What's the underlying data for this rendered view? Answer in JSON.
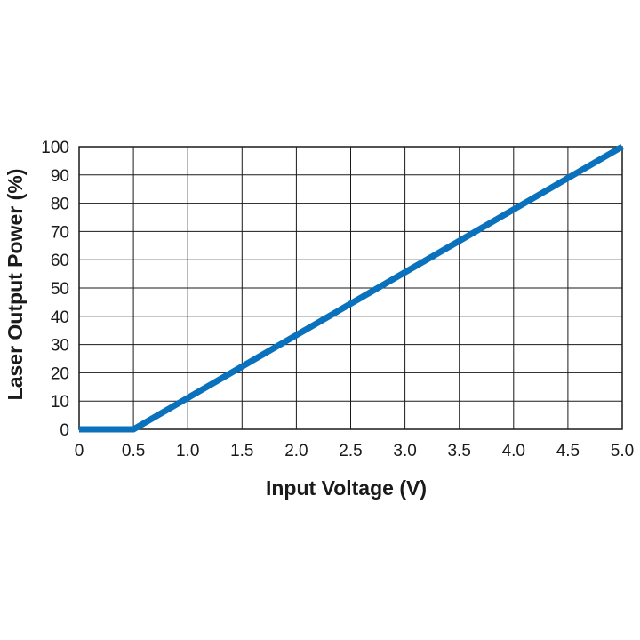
{
  "chart_data": {
    "type": "line",
    "title": "",
    "xlabel": "Input Voltage (V)",
    "ylabel": "Laser Output Power (%)",
    "xlim": [
      0,
      5
    ],
    "ylim": [
      0,
      100
    ],
    "grid": true,
    "legend": "none",
    "x_ticks": [
      "0",
      "0.5",
      "1.0",
      "1.5",
      "2.0",
      "2.5",
      "3.0",
      "3.5",
      "4.0",
      "4.5",
      "5.0"
    ],
    "y_ticks": [
      "0",
      "10",
      "20",
      "30",
      "40",
      "50",
      "60",
      "70",
      "80",
      "90",
      "100"
    ],
    "series": [
      {
        "color": "#0a72bd",
        "x": [
          0,
          0.5,
          5.0
        ],
        "y": [
          0,
          0,
          100
        ]
      }
    ]
  }
}
